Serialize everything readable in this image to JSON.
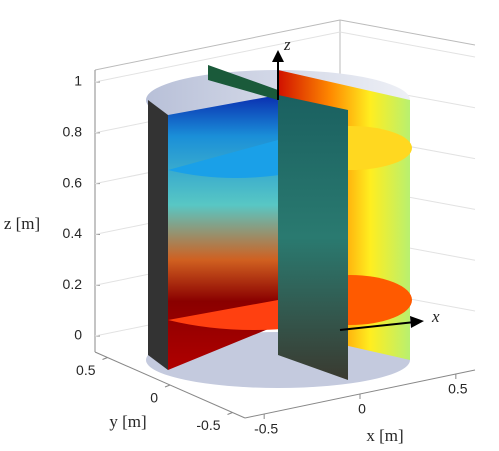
{
  "chart_data": {
    "type": "surface3d",
    "xlabel": "x [m]",
    "ylabel": "y [m]",
    "zlabel": "z [m]",
    "annotations": [
      "z",
      "x"
    ],
    "xlim": [
      -0.6,
      0.6
    ],
    "xticks": [
      -0.5,
      0,
      0.5
    ],
    "ylim": [
      -0.6,
      0.6
    ],
    "yticks": [
      -0.5,
      0,
      0.5
    ],
    "zlim": [
      -0.05,
      1.05
    ],
    "zticks": [
      0,
      0.2,
      0.4,
      0.6,
      0.8,
      1
    ],
    "grid": true
  }
}
